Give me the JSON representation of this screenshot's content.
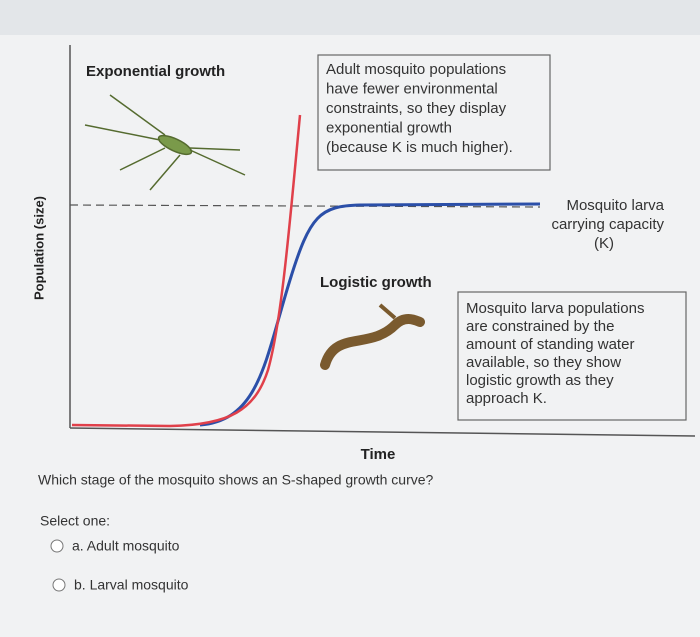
{
  "diagram": {
    "y_axis_label": "Population (size)",
    "x_axis_label": "Time",
    "exponential_label": "Exponential growth",
    "logistic_label": "Logistic growth",
    "adult_note": {
      "lines": [
        "Adult mosquito populations",
        "have fewer environmental",
        "constraints, so they display",
        "exponential growth",
        "(because K is much higher)."
      ]
    },
    "capacity_label": {
      "lines": [
        "Mosquito larva",
        "carrying capacity",
        "(K)"
      ]
    },
    "larva_note": {
      "lines": [
        "Mosquito larva populations",
        "are constrained by the",
        "amount of standing water",
        "available, so they show",
        "logistic growth as they",
        "approach K."
      ]
    }
  },
  "question": {
    "text": "Which stage of the mosquito shows an S-shaped growth curve?",
    "prompt": "Select one:",
    "options": [
      "a. Adult mosquito",
      "b. Larval mosquito"
    ]
  }
}
